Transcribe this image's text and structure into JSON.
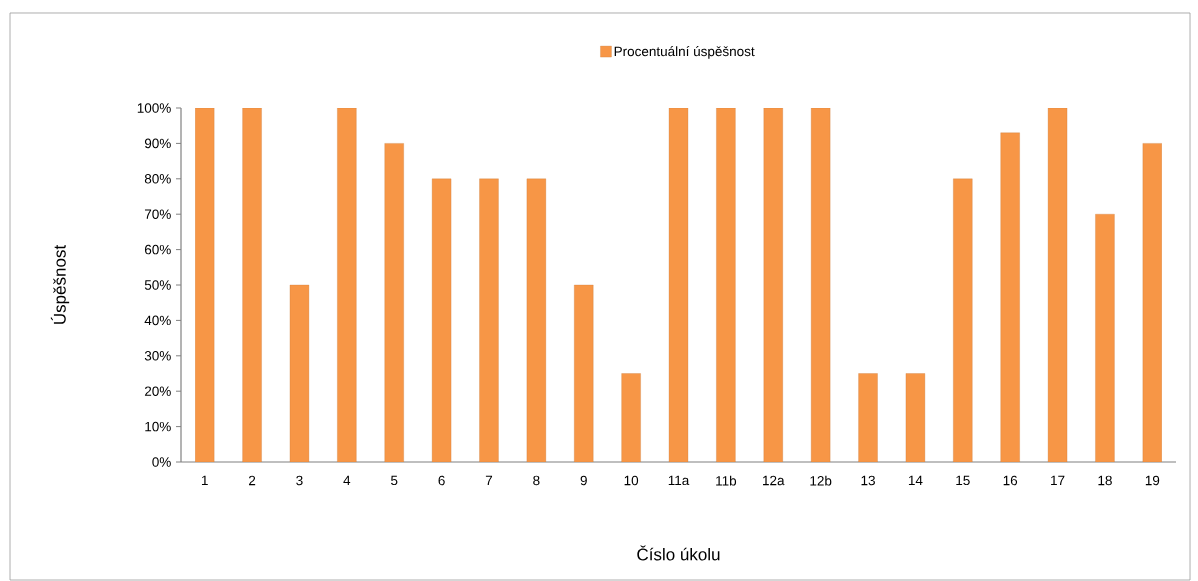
{
  "chart_data": {
    "type": "bar",
    "xlabel": "Číslo úkolu",
    "ylabel": "Úspěšnost",
    "categories": [
      "1",
      "2",
      "3",
      "4",
      "5",
      "6",
      "7",
      "8",
      "9",
      "10",
      "11a",
      "11b",
      "12a",
      "12b",
      "13",
      "14",
      "15",
      "16",
      "17",
      "18",
      "19"
    ],
    "series": [
      {
        "name": "Procentuální úspěšnost",
        "color": "#f79646",
        "values": [
          100,
          100,
          50,
          100,
          90,
          80,
          80,
          80,
          50,
          25,
          100,
          100,
          100,
          100,
          25,
          25,
          80,
          93,
          100,
          70,
          90
        ]
      }
    ],
    "ylim": [
      0,
      100
    ],
    "yticks": [
      {
        "value": 0,
        "label": "0%"
      },
      {
        "value": 10,
        "label": "10%"
      },
      {
        "value": 20,
        "label": "20%"
      },
      {
        "value": 30,
        "label": "30%"
      },
      {
        "value": 40,
        "label": "40%"
      },
      {
        "value": 50,
        "label": "50%"
      },
      {
        "value": 60,
        "label": "60%"
      },
      {
        "value": 70,
        "label": "70%"
      },
      {
        "value": 80,
        "label": "80%"
      },
      {
        "value": 90,
        "label": "90%"
      },
      {
        "value": 100,
        "label": "100%"
      }
    ],
    "grid": false,
    "legend": "top"
  }
}
